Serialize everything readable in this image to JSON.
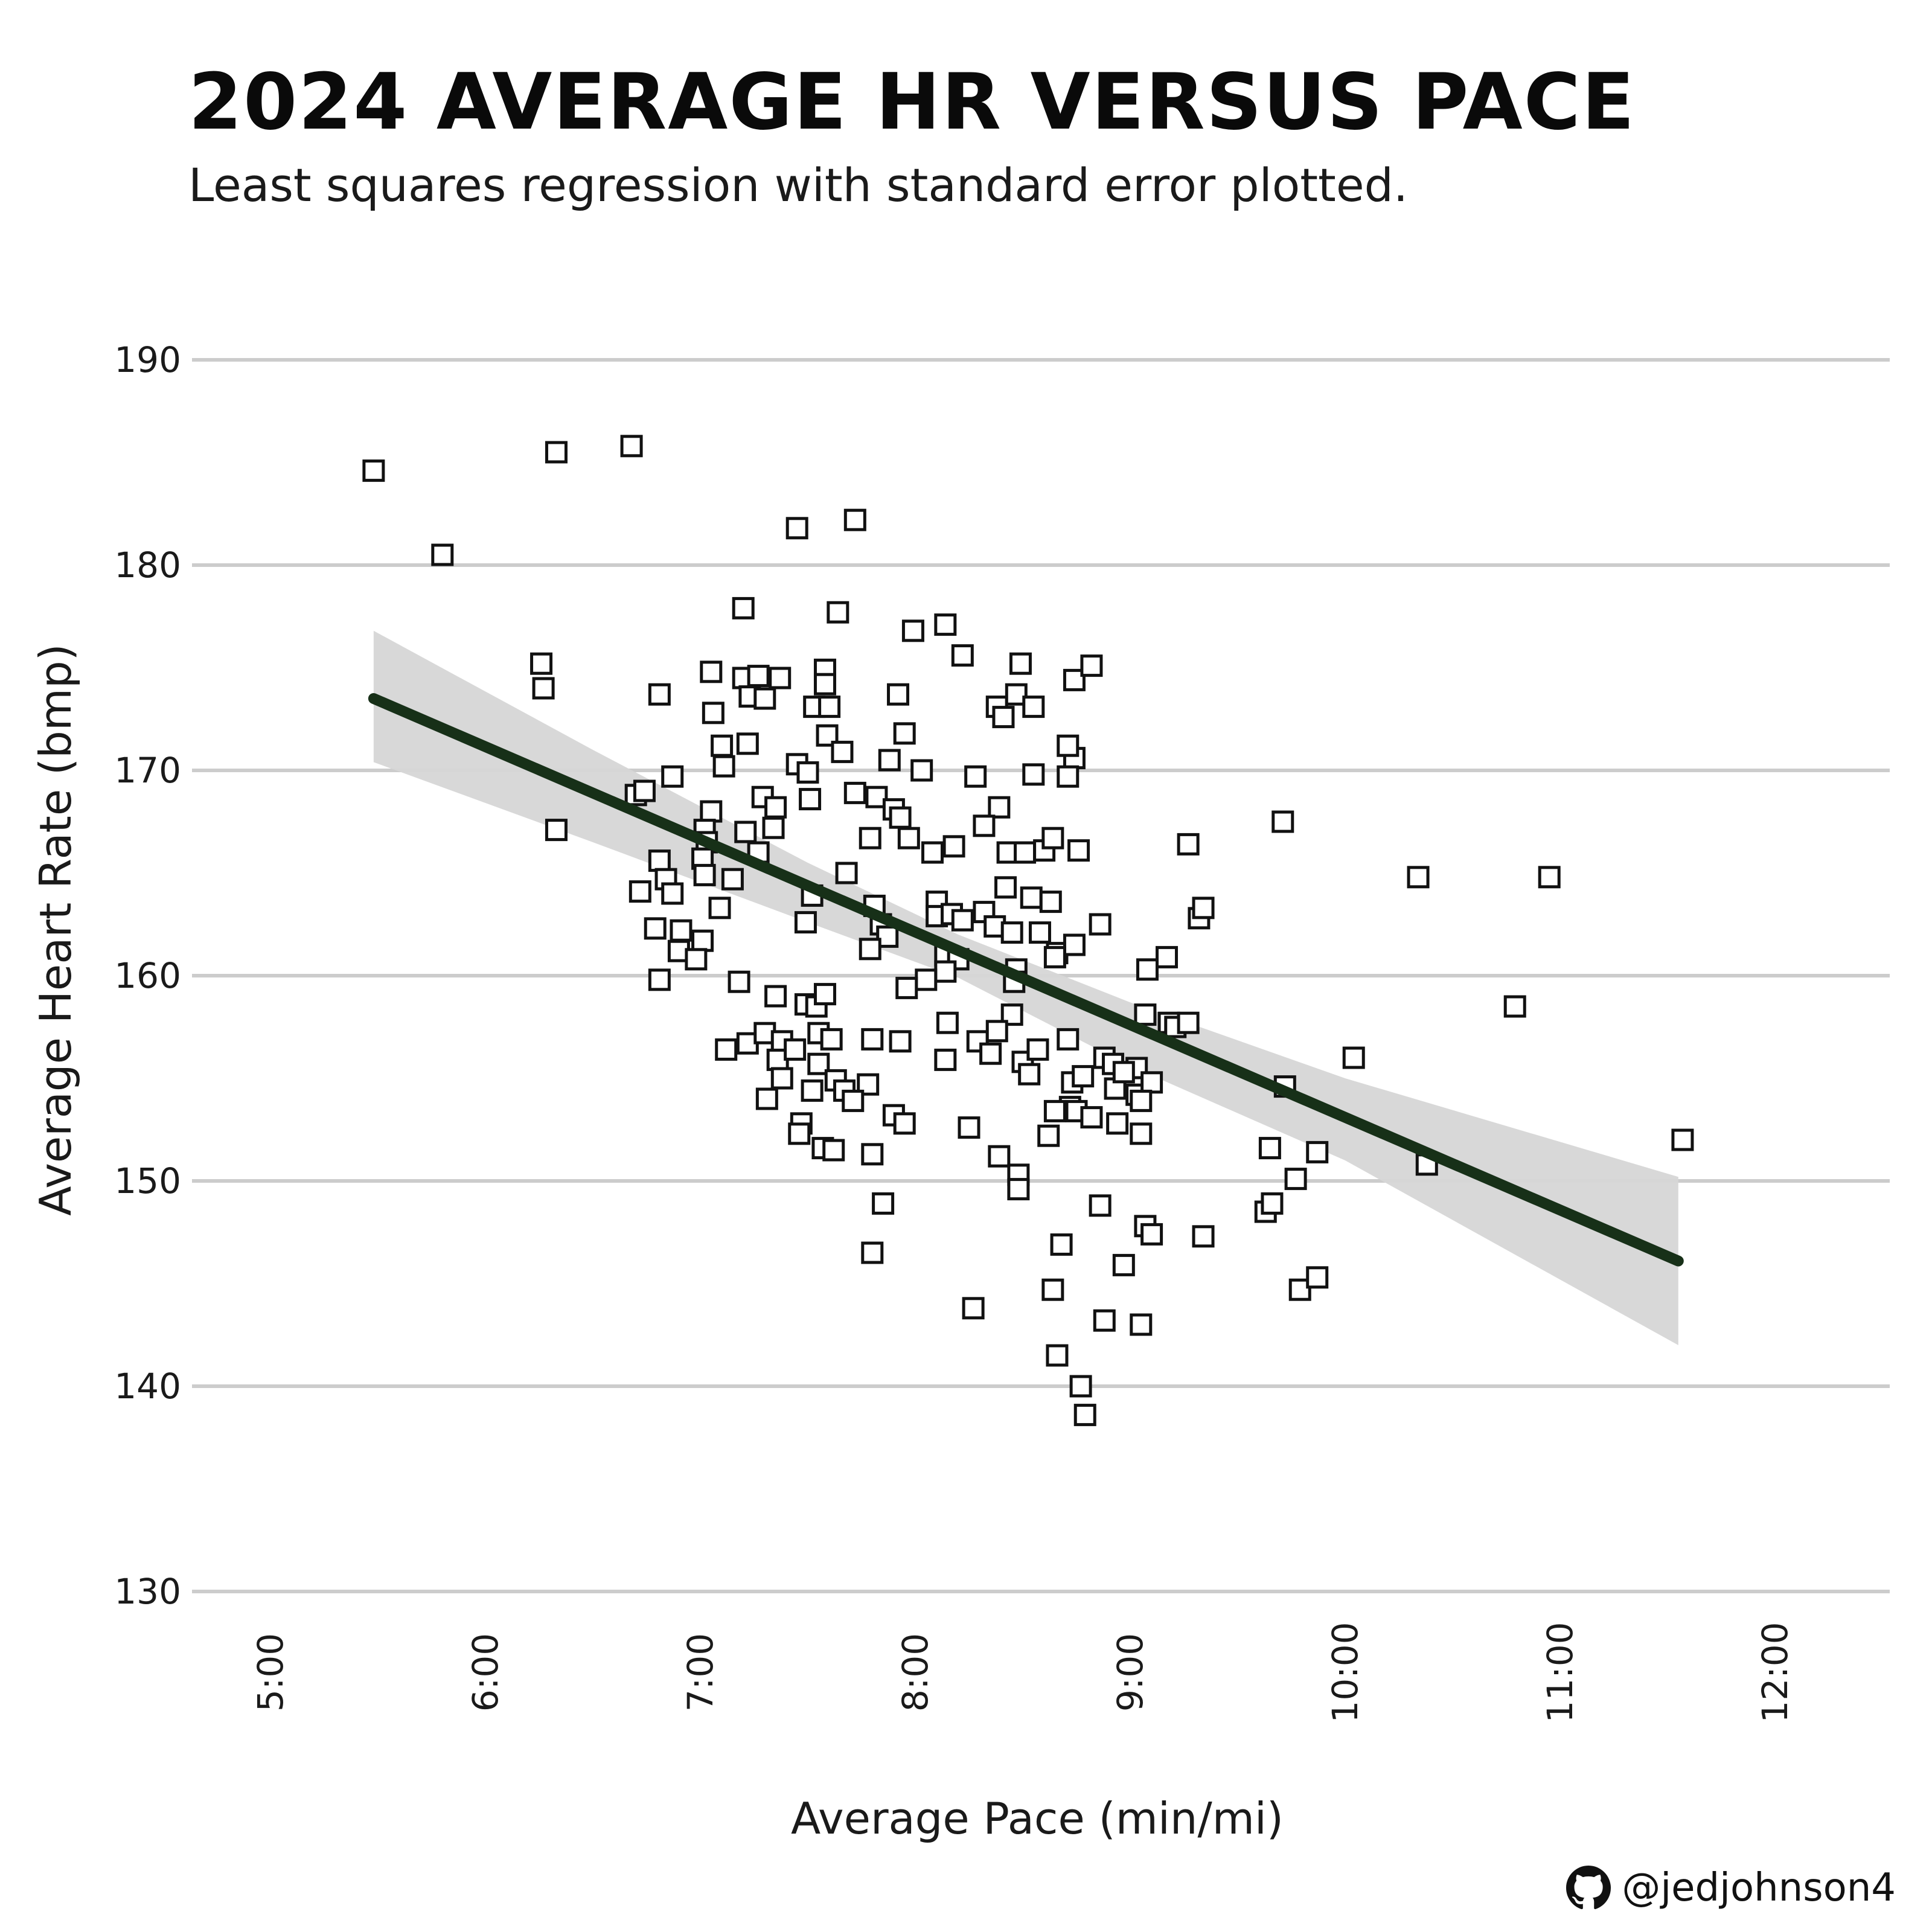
{
  "header": {
    "title": "2024 AVERAGE HR  VERSUS PACE",
    "subtitle": "Least squares regression with standard error plotted."
  },
  "credit": {
    "icon": "github-icon",
    "handle": "@jedjohnson4"
  },
  "colors": {
    "grid": "#cccccc",
    "ribbon": "#d6d6d6",
    "line": "#173018",
    "point_fill": "#ffffff",
    "point_stroke": "#111111"
  },
  "chart_data": {
    "type": "scatter",
    "title": "2024 AVERAGE HR  VERSUS PACE",
    "subtitle": "Least squares regression with standard error plotted.",
    "xlabel": "Average Pace (min/mi)",
    "ylabel": "Average Heart Rate (bmp)",
    "xlim": [
      4.8,
      12.35
    ],
    "ylim": [
      130,
      190
    ],
    "x_ticks": [
      5,
      6,
      7,
      8,
      9,
      10,
      11,
      12
    ],
    "x_tick_labels": [
      "5:00",
      "6:00",
      "7:00",
      "8:00",
      "9:00",
      "10:00",
      "11:00",
      "12:00"
    ],
    "y_ticks": [
      130,
      140,
      150,
      160,
      170,
      180,
      190
    ],
    "y_tick_labels": [
      "130",
      "140",
      "150",
      "160",
      "170",
      "180",
      "190"
    ],
    "grid": "horizontal",
    "regression": {
      "x": [
        5.48,
        11.55
      ],
      "y": [
        173.5,
        146.1
      ]
    },
    "standard_error_band": {
      "x": [
        5.48,
        6.5,
        7.5,
        8.2,
        9.0,
        10.0,
        11.55
      ],
      "upper": [
        176.8,
        171.0,
        165.5,
        162.0,
        158.7,
        155.0,
        150.2
      ],
      "lower": [
        170.4,
        166.5,
        162.6,
        159.9,
        155.6,
        151.0,
        142.0
      ]
    },
    "points": [
      [
        5.48,
        184.6
      ],
      [
        5.8,
        180.5
      ],
      [
        6.33,
        185.5
      ],
      [
        6.68,
        185.8
      ],
      [
        6.26,
        175.2
      ],
      [
        6.27,
        174.0
      ],
      [
        6.33,
        167.1
      ],
      [
        7.45,
        181.8
      ],
      [
        7.72,
        182.2
      ],
      [
        7.2,
        177.9
      ],
      [
        7.64,
        177.7
      ],
      [
        7.99,
        176.8
      ],
      [
        8.14,
        177.1
      ],
      [
        8.22,
        175.6
      ],
      [
        8.49,
        175.2
      ],
      [
        8.74,
        174.4
      ],
      [
        8.82,
        175.1
      ],
      [
        6.81,
        173.7
      ],
      [
        7.05,
        174.8
      ],
      [
        7.06,
        172.8
      ],
      [
        7.2,
        174.5
      ],
      [
        7.27,
        174.6
      ],
      [
        7.37,
        174.5
      ],
      [
        7.23,
        173.6
      ],
      [
        7.3,
        173.5
      ],
      [
        7.53,
        173.1
      ],
      [
        7.6,
        173.1
      ],
      [
        7.58,
        174.9
      ],
      [
        7.58,
        174.2
      ],
      [
        7.92,
        173.7
      ],
      [
        8.38,
        173.1
      ],
      [
        8.41,
        172.6
      ],
      [
        8.47,
        173.7
      ],
      [
        8.55,
        173.1
      ],
      [
        7.1,
        171.2
      ],
      [
        7.11,
        170.2
      ],
      [
        7.22,
        171.3
      ],
      [
        7.45,
        170.3
      ],
      [
        7.5,
        169.9
      ],
      [
        7.59,
        171.7
      ],
      [
        7.66,
        170.9
      ],
      [
        7.88,
        170.5
      ],
      [
        7.95,
        171.8
      ],
      [
        8.03,
        170.0
      ],
      [
        8.28,
        169.7
      ],
      [
        6.87,
        169.7
      ],
      [
        6.7,
        168.8
      ],
      [
        6.74,
        169.0
      ],
      [
        7.05,
        168.0
      ],
      [
        7.29,
        168.7
      ],
      [
        7.35,
        168.2
      ],
      [
        7.51,
        168.6
      ],
      [
        7.72,
        168.9
      ],
      [
        7.82,
        168.7
      ],
      [
        7.9,
        168.1
      ],
      [
        7.93,
        167.7
      ],
      [
        8.39,
        168.2
      ],
      [
        8.55,
        169.8
      ],
      [
        8.74,
        170.6
      ],
      [
        8.71,
        171.2
      ],
      [
        8.71,
        169.7
      ],
      [
        7.02,
        167.1
      ],
      [
        7.03,
        166.5
      ],
      [
        7.01,
        165.7
      ],
      [
        7.02,
        164.9
      ],
      [
        7.21,
        167.0
      ],
      [
        7.27,
        166.0
      ],
      [
        7.34,
        167.2
      ],
      [
        7.68,
        165.0
      ],
      [
        7.79,
        166.7
      ],
      [
        7.97,
        166.7
      ],
      [
        8.08,
        166.0
      ],
      [
        8.18,
        166.3
      ],
      [
        8.32,
        167.3
      ],
      [
        8.43,
        166.0
      ],
      [
        8.51,
        166.0
      ],
      [
        8.6,
        166.1
      ],
      [
        8.64,
        166.7
      ],
      [
        8.76,
        166.1
      ],
      [
        9.27,
        166.4
      ],
      [
        9.71,
        167.5
      ],
      [
        6.81,
        165.6
      ],
      [
        6.84,
        164.7
      ],
      [
        6.87,
        164.0
      ],
      [
        6.72,
        164.1
      ],
      [
        7.15,
        164.7
      ],
      [
        7.09,
        163.3
      ],
      [
        7.52,
        163.9
      ],
      [
        7.49,
        162.6
      ],
      [
        7.81,
        163.4
      ],
      [
        7.84,
        162.5
      ],
      [
        7.87,
        161.9
      ],
      [
        8.1,
        163.6
      ],
      [
        8.1,
        162.9
      ],
      [
        8.17,
        163.0
      ],
      [
        8.22,
        162.7
      ],
      [
        8.32,
        163.1
      ],
      [
        8.37,
        162.4
      ],
      [
        8.42,
        164.3
      ],
      [
        8.45,
        162.1
      ],
      [
        8.54,
        163.8
      ],
      [
        8.63,
        163.6
      ],
      [
        8.58,
        162.1
      ],
      [
        8.66,
        161.1
      ],
      [
        8.74,
        161.5
      ],
      [
        8.86,
        162.5
      ],
      [
        9.32,
        162.8
      ],
      [
        9.34,
        163.3
      ],
      [
        6.79,
        162.3
      ],
      [
        6.91,
        162.2
      ],
      [
        6.9,
        161.2
      ],
      [
        7.01,
        161.7
      ],
      [
        6.98,
        160.8
      ],
      [
        7.79,
        161.3
      ],
      [
        8.14,
        161.0
      ],
      [
        8.2,
        160.8
      ],
      [
        8.14,
        160.2
      ],
      [
        8.05,
        159.8
      ],
      [
        8.47,
        160.3
      ],
      [
        8.46,
        159.7
      ],
      [
        8.65,
        160.9
      ],
      [
        9.08,
        160.3
      ],
      [
        9.17,
        160.9
      ],
      [
        6.81,
        159.8
      ],
      [
        7.18,
        159.7
      ],
      [
        7.35,
        159.0
      ],
      [
        7.49,
        158.6
      ],
      [
        7.54,
        158.5
      ],
      [
        7.58,
        159.1
      ],
      [
        7.96,
        159.4
      ],
      [
        8.45,
        158.1
      ],
      [
        9.07,
        158.1
      ],
      [
        9.18,
        157.7
      ],
      [
        9.21,
        157.5
      ],
      [
        9.27,
        157.7
      ],
      [
        7.12,
        156.4
      ],
      [
        7.22,
        156.7
      ],
      [
        7.3,
        157.2
      ],
      [
        7.38,
        156.8
      ],
      [
        7.36,
        155.9
      ],
      [
        7.44,
        156.4
      ],
      [
        7.55,
        157.2
      ],
      [
        7.61,
        156.9
      ],
      [
        7.55,
        155.7
      ],
      [
        7.8,
        156.9
      ],
      [
        7.93,
        156.8
      ],
      [
        8.15,
        157.7
      ],
      [
        8.14,
        155.9
      ],
      [
        8.29,
        156.8
      ],
      [
        8.38,
        157.3
      ],
      [
        8.35,
        156.2
      ],
      [
        8.5,
        155.8
      ],
      [
        8.53,
        155.2
      ],
      [
        8.57,
        156.4
      ],
      [
        8.71,
        156.9
      ],
      [
        8.88,
        156.0
      ],
      [
        8.92,
        155.7
      ],
      [
        9.03,
        155.5
      ],
      [
        9.03,
        154.2
      ],
      [
        9.1,
        154.8
      ],
      [
        9.72,
        154.6
      ],
      [
        10.04,
        156.0
      ],
      [
        7.31,
        154.0
      ],
      [
        7.38,
        155.0
      ],
      [
        7.52,
        154.4
      ],
      [
        7.63,
        154.9
      ],
      [
        7.67,
        154.4
      ],
      [
        7.78,
        154.7
      ],
      [
        7.71,
        153.9
      ],
      [
        8.73,
        154.8
      ],
      [
        8.78,
        155.1
      ],
      [
        8.93,
        154.5
      ],
      [
        8.97,
        155.3
      ],
      [
        9.05,
        153.9
      ],
      [
        7.47,
        152.8
      ],
      [
        7.46,
        152.3
      ],
      [
        7.57,
        151.6
      ],
      [
        7.62,
        151.5
      ],
      [
        7.8,
        151.3
      ],
      [
        7.9,
        153.2
      ],
      [
        7.95,
        152.8
      ],
      [
        8.25,
        152.6
      ],
      [
        8.72,
        153.6
      ],
      [
        8.75,
        153.4
      ],
      [
        8.82,
        153.1
      ],
      [
        8.65,
        153.4
      ],
      [
        8.62,
        152.2
      ],
      [
        8.94,
        152.8
      ],
      [
        9.05,
        152.3
      ],
      [
        9.65,
        151.6
      ],
      [
        9.87,
        151.4
      ],
      [
        10.38,
        150.8
      ],
      [
        11.57,
        152.0
      ],
      [
        8.39,
        151.2
      ],
      [
        8.48,
        150.3
      ],
      [
        8.48,
        149.6
      ],
      [
        7.85,
        148.9
      ],
      [
        8.86,
        148.8
      ],
      [
        9.07,
        147.8
      ],
      [
        9.1,
        147.4
      ],
      [
        9.34,
        147.3
      ],
      [
        9.63,
        148.5
      ],
      [
        9.66,
        148.9
      ],
      [
        9.77,
        150.1
      ],
      [
        7.8,
        146.5
      ],
      [
        8.68,
        146.9
      ],
      [
        8.97,
        145.9
      ],
      [
        8.64,
        144.7
      ],
      [
        9.79,
        144.7
      ],
      [
        9.87,
        145.3
      ],
      [
        8.27,
        143.8
      ],
      [
        8.88,
        143.2
      ],
      [
        9.05,
        143.0
      ],
      [
        8.66,
        141.5
      ],
      [
        8.77,
        140.0
      ],
      [
        8.79,
        138.6
      ],
      [
        10.34,
        164.8
      ],
      [
        10.95,
        164.8
      ],
      [
        10.79,
        158.5
      ]
    ]
  }
}
